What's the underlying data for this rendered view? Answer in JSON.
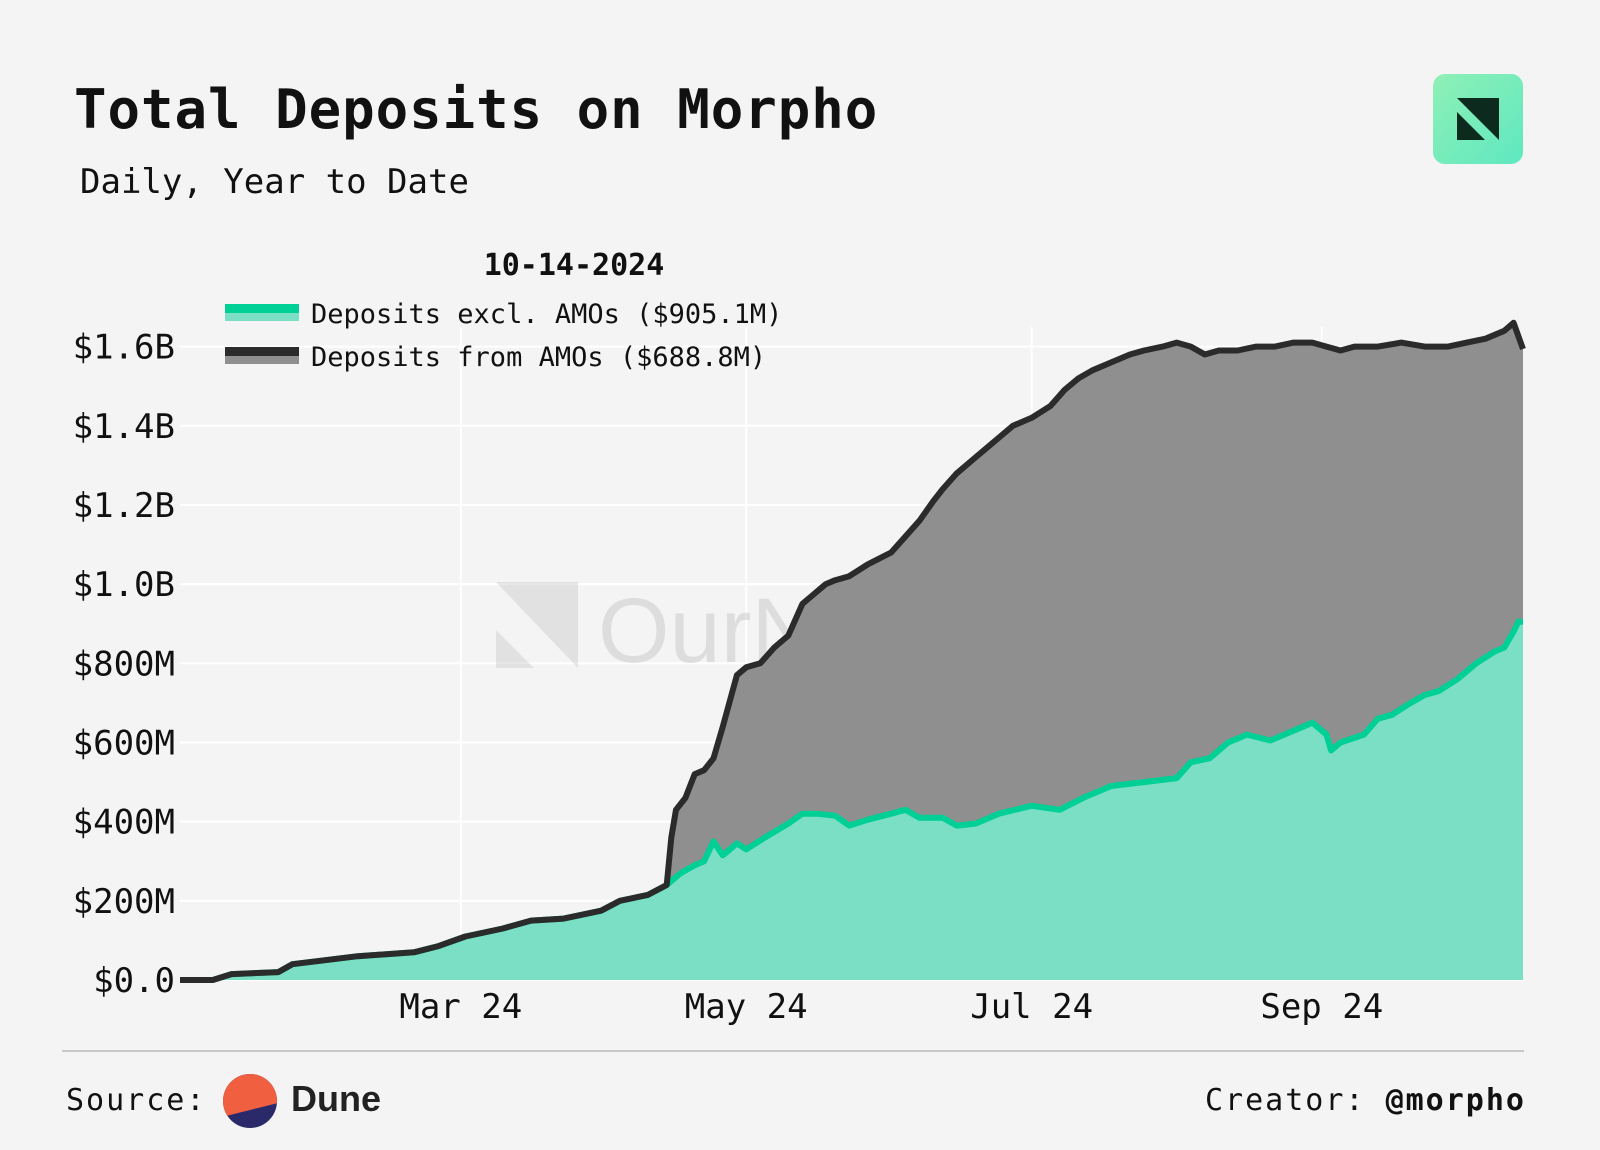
{
  "header": {
    "title": "Total Deposits on Morpho",
    "subtitle": "Daily, Year to Date"
  },
  "footer": {
    "source_label": "Source:",
    "source_name": "Dune",
    "creator_label": "Creator:",
    "creator_handle": "@morpho"
  },
  "logo": {
    "icon": "ournetwork-logo-icon",
    "colors": [
      "#8ff0b6",
      "#5fe8c0"
    ]
  },
  "watermark": {
    "text": "OurNetwork"
  },
  "colors": {
    "background": "#f4f4f4",
    "teal_line": "#00cf96",
    "teal_fill": "#7adfc4",
    "dark_line": "#2b2b2b",
    "gray_fill": "#8f8f8f",
    "grid": "#ffffff",
    "dune_orange": "#f06040",
    "dune_navy": "#2a2a6a"
  },
  "chart_data": {
    "type": "area",
    "date_label": "10-14-2024",
    "x_tick_labels": [
      "Mar 24",
      "May 24",
      "Jul 24",
      "Sep 24"
    ],
    "x_ticks": [
      "2024-03-01",
      "2024-05-01",
      "2024-07-01",
      "2024-09-01"
    ],
    "y_tick_labels": [
      "$0.0",
      "$200M",
      "$400M",
      "$600M",
      "$800M",
      "$1.0B",
      "$1.2B",
      "$1.4B",
      "$1.6B"
    ],
    "y_ticks": [
      0,
      200,
      400,
      600,
      800,
      1000,
      1200,
      1400,
      1600
    ],
    "y_unit": "millions USD",
    "ylim": [
      0,
      1700
    ],
    "xlim": [
      "2024-01-01",
      "2024-10-14"
    ],
    "stacked": true,
    "grid": true,
    "legend_position": "top-left",
    "series": [
      {
        "name": "Deposits excl. AMOs ($905.1M)",
        "color": "#00cf96",
        "points": [
          [
            "2024-01-01",
            0
          ],
          [
            "2024-01-08",
            0
          ],
          [
            "2024-01-12",
            15
          ],
          [
            "2024-01-22",
            20
          ],
          [
            "2024-01-25",
            40
          ],
          [
            "2024-02-01",
            50
          ],
          [
            "2024-02-08",
            60
          ],
          [
            "2024-02-20",
            70
          ],
          [
            "2024-02-25",
            85
          ],
          [
            "2024-03-02",
            110
          ],
          [
            "2024-03-10",
            130
          ],
          [
            "2024-03-16",
            150
          ],
          [
            "2024-03-23",
            155
          ],
          [
            "2024-03-31",
            175
          ],
          [
            "2024-04-04",
            200
          ],
          [
            "2024-04-10",
            215
          ],
          [
            "2024-04-14",
            240
          ],
          [
            "2024-04-17",
            270
          ],
          [
            "2024-04-20",
            290
          ],
          [
            "2024-04-22",
            300
          ],
          [
            "2024-04-24",
            350
          ],
          [
            "2024-04-26",
            315
          ],
          [
            "2024-04-29",
            345
          ],
          [
            "2024-05-01",
            330
          ],
          [
            "2024-05-05",
            360
          ],
          [
            "2024-05-10",
            395
          ],
          [
            "2024-05-13",
            420
          ],
          [
            "2024-05-16",
            420
          ],
          [
            "2024-05-20",
            415
          ],
          [
            "2024-05-23",
            390
          ],
          [
            "2024-05-27",
            405
          ],
          [
            "2024-06-01",
            420
          ],
          [
            "2024-06-04",
            430
          ],
          [
            "2024-06-07",
            410
          ],
          [
            "2024-06-12",
            410
          ],
          [
            "2024-06-15",
            390
          ],
          [
            "2024-06-19",
            395
          ],
          [
            "2024-06-24",
            420
          ],
          [
            "2024-07-01",
            440
          ],
          [
            "2024-07-07",
            430
          ],
          [
            "2024-07-12",
            460
          ],
          [
            "2024-07-18",
            490
          ],
          [
            "2024-07-25",
            500
          ],
          [
            "2024-08-01",
            510
          ],
          [
            "2024-08-04",
            550
          ],
          [
            "2024-08-08",
            560
          ],
          [
            "2024-08-12",
            600
          ],
          [
            "2024-08-16",
            620
          ],
          [
            "2024-08-21",
            605
          ],
          [
            "2024-08-26",
            630
          ],
          [
            "2024-08-30",
            650
          ],
          [
            "2024-09-02",
            620
          ],
          [
            "2024-09-03",
            580
          ],
          [
            "2024-09-05",
            600
          ],
          [
            "2024-09-10",
            620
          ],
          [
            "2024-09-13",
            660
          ],
          [
            "2024-09-16",
            670
          ],
          [
            "2024-09-20",
            700
          ],
          [
            "2024-09-23",
            720
          ],
          [
            "2024-09-26",
            730
          ],
          [
            "2024-09-30",
            760
          ],
          [
            "2024-10-04",
            800
          ],
          [
            "2024-10-08",
            830
          ],
          [
            "2024-10-10",
            840
          ],
          [
            "2024-10-12",
            880
          ],
          [
            "2024-10-13",
            905.1
          ],
          [
            "2024-10-14",
            905.1
          ]
        ]
      },
      {
        "name": "Deposits from AMOs ($688.8M)",
        "color": "#2b2b2b",
        "points": [
          [
            "2024-01-01",
            0
          ],
          [
            "2024-01-08",
            0
          ],
          [
            "2024-01-12",
            15
          ],
          [
            "2024-01-22",
            20
          ],
          [
            "2024-01-25",
            40
          ],
          [
            "2024-02-01",
            50
          ],
          [
            "2024-02-08",
            60
          ],
          [
            "2024-02-20",
            70
          ],
          [
            "2024-02-25",
            85
          ],
          [
            "2024-03-02",
            110
          ],
          [
            "2024-03-10",
            130
          ],
          [
            "2024-03-16",
            150
          ],
          [
            "2024-03-23",
            155
          ],
          [
            "2024-03-31",
            175
          ],
          [
            "2024-04-04",
            200
          ],
          [
            "2024-04-10",
            215
          ],
          [
            "2024-04-14",
            240
          ],
          [
            "2024-04-15",
            360
          ],
          [
            "2024-04-16",
            430
          ],
          [
            "2024-04-18",
            460
          ],
          [
            "2024-04-20",
            520
          ],
          [
            "2024-04-22",
            530
          ],
          [
            "2024-04-24",
            560
          ],
          [
            "2024-04-26",
            640
          ],
          [
            "2024-04-29",
            770
          ],
          [
            "2024-05-01",
            790
          ],
          [
            "2024-05-04",
            800
          ],
          [
            "2024-05-07",
            840
          ],
          [
            "2024-05-10",
            870
          ],
          [
            "2024-05-13",
            950
          ],
          [
            "2024-05-16",
            980
          ],
          [
            "2024-05-18",
            1000
          ],
          [
            "2024-05-20",
            1010
          ],
          [
            "2024-05-23",
            1020
          ],
          [
            "2024-05-27",
            1050
          ],
          [
            "2024-06-01",
            1080
          ],
          [
            "2024-06-04",
            1120
          ],
          [
            "2024-06-07",
            1160
          ],
          [
            "2024-06-10",
            1210
          ],
          [
            "2024-06-12",
            1240
          ],
          [
            "2024-06-15",
            1280
          ],
          [
            "2024-06-19",
            1320
          ],
          [
            "2024-06-22",
            1350
          ],
          [
            "2024-06-24",
            1370
          ],
          [
            "2024-06-27",
            1400
          ],
          [
            "2024-07-01",
            1420
          ],
          [
            "2024-07-05",
            1450
          ],
          [
            "2024-07-08",
            1490
          ],
          [
            "2024-07-11",
            1520
          ],
          [
            "2024-07-14",
            1540
          ],
          [
            "2024-07-18",
            1560
          ],
          [
            "2024-07-22",
            1580
          ],
          [
            "2024-07-25",
            1590
          ],
          [
            "2024-07-29",
            1600
          ],
          [
            "2024-08-01",
            1610
          ],
          [
            "2024-08-04",
            1600
          ],
          [
            "2024-08-07",
            1580
          ],
          [
            "2024-08-10",
            1590
          ],
          [
            "2024-08-14",
            1590
          ],
          [
            "2024-08-18",
            1600
          ],
          [
            "2024-08-22",
            1600
          ],
          [
            "2024-08-26",
            1610
          ],
          [
            "2024-08-30",
            1610
          ],
          [
            "2024-09-02",
            1600
          ],
          [
            "2024-09-05",
            1590
          ],
          [
            "2024-09-08",
            1600
          ],
          [
            "2024-09-13",
            1600
          ],
          [
            "2024-09-18",
            1610
          ],
          [
            "2024-09-23",
            1600
          ],
          [
            "2024-09-28",
            1600
          ],
          [
            "2024-10-02",
            1610
          ],
          [
            "2024-10-06",
            1620
          ],
          [
            "2024-10-10",
            1640
          ],
          [
            "2024-10-12",
            1660
          ],
          [
            "2024-10-14",
            1593.9
          ]
        ]
      }
    ]
  }
}
